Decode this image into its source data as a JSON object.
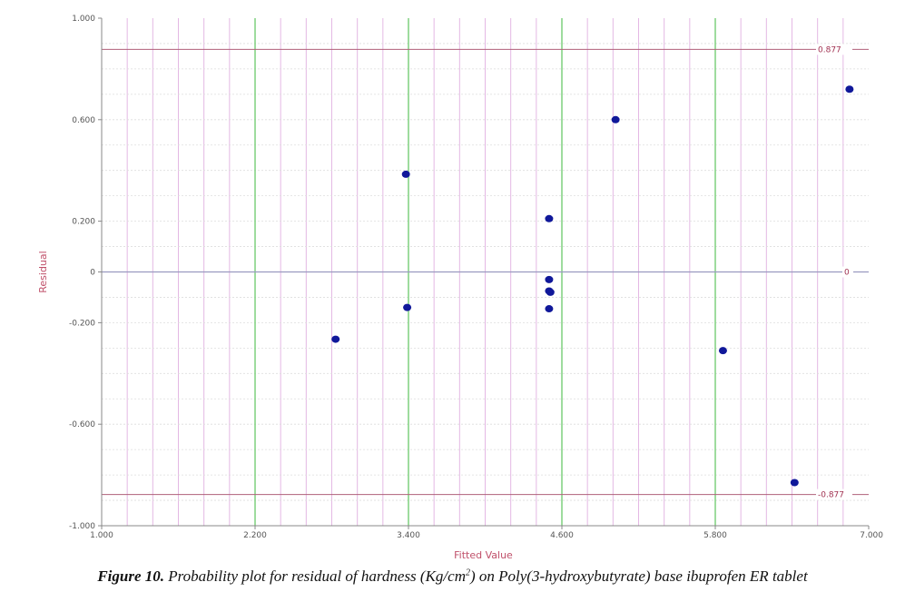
{
  "chart_data": {
    "type": "scatter",
    "xlabel": "Fitted Value",
    "ylabel": "Residual",
    "xlim": [
      1.0,
      7.0
    ],
    "ylim": [
      -1.0,
      1.0
    ],
    "x_ticks": [
      1.0,
      2.2,
      3.4,
      4.6,
      5.8,
      7.0
    ],
    "x_tick_labels": [
      "1.000",
      "2.200",
      "3.400",
      "4.600",
      "5.800",
      "7.000"
    ],
    "y_ticks": [
      -1.0,
      -0.6,
      -0.2,
      0,
      0.2,
      0.6,
      1.0
    ],
    "y_tick_labels": [
      "-1.000",
      "-0.600",
      "-0.200",
      "0",
      "0.200",
      "0.600",
      "1.000"
    ],
    "reference_lines": [
      {
        "y": 0.877,
        "label": "0.877"
      },
      {
        "y": 0,
        "label": "0"
      },
      {
        "y": -0.877,
        "label": "-0.877"
      }
    ],
    "grid": true,
    "points": [
      {
        "x": 2.83,
        "y": -0.265
      },
      {
        "x": 3.38,
        "y": 0.385
      },
      {
        "x": 3.39,
        "y": -0.14
      },
      {
        "x": 4.5,
        "y": 0.21
      },
      {
        "x": 4.5,
        "y": -0.03
      },
      {
        "x": 4.5,
        "y": -0.075
      },
      {
        "x": 4.51,
        "y": -0.08
      },
      {
        "x": 4.5,
        "y": -0.145
      },
      {
        "x": 5.02,
        "y": 0.6
      },
      {
        "x": 5.86,
        "y": -0.31
      },
      {
        "x": 6.42,
        "y": -0.83
      },
      {
        "x": 6.85,
        "y": 0.72
      }
    ],
    "colors": {
      "points": "#10189a",
      "major_grid": "#7fd07f",
      "minor_grid": "#e4b8e4",
      "ref_line": "#b0607a",
      "zero_line": "#9a9ac0"
    }
  },
  "caption": {
    "label": "Figure 10.",
    "text_before": " Probability plot for residual of hardness (Kg/cm",
    "superscript": "2",
    "text_after": ") on Poly(3-hydroxybutyrate) base ibuprofen ER tablet"
  }
}
